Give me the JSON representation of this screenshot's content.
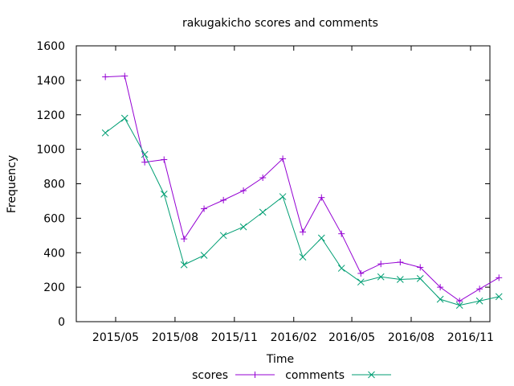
{
  "chart_data": {
    "type": "line",
    "title": "rakugakicho scores and comments",
    "xlabel": "Time",
    "ylabel": "Frequency",
    "x": [
      "2015-04",
      "2015-05",
      "2015-06",
      "2015-07",
      "2015-08",
      "2015-09",
      "2015-10",
      "2015-11",
      "2015-12",
      "2016-01",
      "2016-02",
      "2016-03",
      "2016-04",
      "2016-05",
      "2016-06",
      "2016-07",
      "2016-08",
      "2016-09",
      "2016-10",
      "2016-11",
      "2016-12"
    ],
    "x_range": [
      "2015-03-01",
      "2016-12-01"
    ],
    "xticks": [
      {
        "date": "2015-05-01",
        "label": "2015/05"
      },
      {
        "date": "2015-08-01",
        "label": "2015/08"
      },
      {
        "date": "2015-11-01",
        "label": "2015/11"
      },
      {
        "date": "2016-02-01",
        "label": "2016/02"
      },
      {
        "date": "2016-05-01",
        "label": "2016/05"
      },
      {
        "date": "2016-08-01",
        "label": "2016/08"
      },
      {
        "date": "2016-11-01",
        "label": "2016/11"
      }
    ],
    "ylim": [
      0,
      1600
    ],
    "yticks": [
      0,
      200,
      400,
      600,
      800,
      1000,
      1200,
      1400,
      1600
    ],
    "grid": false,
    "legend": "bottom-center",
    "series": [
      {
        "name": "scores",
        "color": "#9400d3",
        "marker": "plus",
        "values": [
          1420,
          1425,
          925,
          940,
          480,
          655,
          705,
          760,
          835,
          945,
          520,
          720,
          510,
          280,
          335,
          345,
          315,
          200,
          120,
          190,
          255
        ]
      },
      {
        "name": "comments",
        "color": "#009e73",
        "marker": "cross",
        "values": [
          1095,
          1180,
          970,
          740,
          330,
          385,
          500,
          550,
          635,
          725,
          375,
          485,
          310,
          230,
          260,
          245,
          250,
          130,
          95,
          120,
          145
        ]
      }
    ]
  }
}
